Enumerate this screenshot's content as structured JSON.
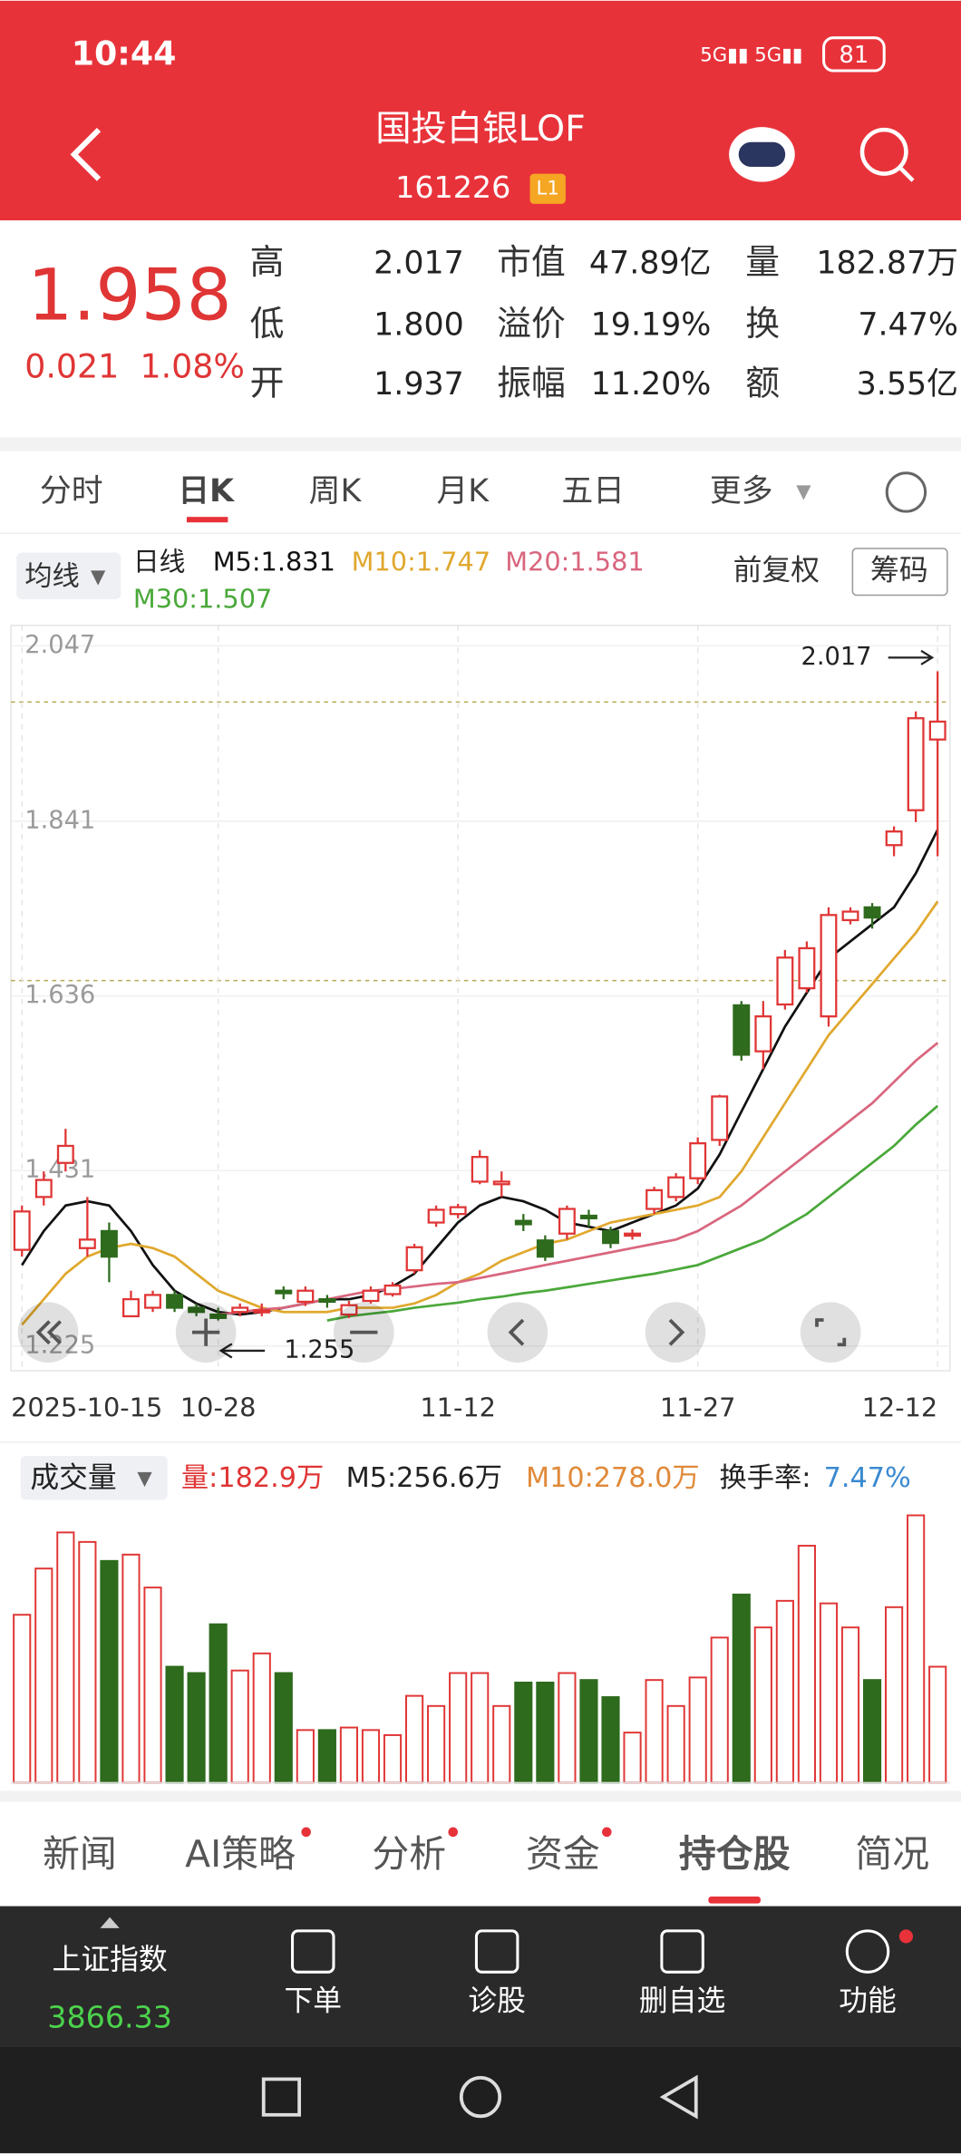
{
  "status_bar": {
    "time": "10:44",
    "battery": "81"
  },
  "header": {
    "title": "国投白银LOF",
    "code": "161226",
    "badge": "L1"
  },
  "quote": {
    "price": "1.958",
    "change": "0.021",
    "change_pct": "1.08%",
    "fields": [
      [
        {
          "label": "高",
          "value": "2.017"
        },
        {
          "label": "市值",
          "value": "47.89亿"
        },
        {
          "label": "量",
          "value": "182.87万"
        }
      ],
      [
        {
          "label": "低",
          "value": "1.800"
        },
        {
          "label": "溢价",
          "value": "19.19%"
        },
        {
          "label": "换",
          "value": "7.47%"
        }
      ],
      [
        {
          "label": "开",
          "value": "1.937"
        },
        {
          "label": "振幅",
          "value": "11.20%"
        },
        {
          "label": "额",
          "value": "3.55亿"
        }
      ]
    ]
  },
  "tabs": [
    "分时",
    "日K",
    "周K",
    "月K",
    "五日",
    "更多"
  ],
  "legend": {
    "ma_button": "均线",
    "period": "日线",
    "adjust": "前复权",
    "chips": "筹码"
  },
  "chart_data": {
    "type": "candlestick",
    "categories": [
      "2025-10-15",
      null,
      null,
      null,
      null,
      null,
      null,
      null,
      null,
      "10-28",
      null,
      null,
      null,
      null,
      null,
      null,
      null,
      null,
      null,
      null,
      "11-12",
      null,
      null,
      null,
      null,
      null,
      null,
      null,
      null,
      null,
      null,
      "11-27",
      null,
      null,
      null,
      null,
      null,
      null,
      null,
      null,
      null,
      null,
      "12-12"
    ],
    "open": [
      1.338,
      1.4,
      1.44,
      1.34,
      1.36,
      1.26,
      1.27,
      1.285,
      1.27,
      1.262,
      1.265,
      1.265,
      1.29,
      1.277,
      1.28,
      1.262,
      1.278,
      1.286,
      1.314,
      1.37,
      1.38,
      1.418,
      1.415,
      1.372,
      1.349,
      1.357,
      1.378,
      1.36,
      1.355,
      1.386,
      1.4,
      1.422,
      1.467,
      1.625,
      1.571,
      1.626,
      1.645,
      1.612,
      1.725,
      1.74,
      1.813,
      1.854,
      1.937
    ],
    "high": [
      1.39,
      1.43,
      1.48,
      1.4,
      1.37,
      1.29,
      1.29,
      1.29,
      1.275,
      1.27,
      1.275,
      1.275,
      1.295,
      1.295,
      1.285,
      1.278,
      1.295,
      1.3,
      1.345,
      1.39,
      1.392,
      1.455,
      1.43,
      1.38,
      1.355,
      1.39,
      1.385,
      1.365,
      1.362,
      1.412,
      1.428,
      1.47,
      1.52,
      1.63,
      1.63,
      1.69,
      1.7,
      1.74,
      1.74,
      1.745,
      1.835,
      1.97,
      2.017
    ],
    "low": [
      1.33,
      1.39,
      1.43,
      1.33,
      1.3,
      1.26,
      1.265,
      1.265,
      1.26,
      1.255,
      1.26,
      1.26,
      1.28,
      1.272,
      1.27,
      1.258,
      1.275,
      1.283,
      1.31,
      1.365,
      1.375,
      1.415,
      1.4,
      1.36,
      1.325,
      1.35,
      1.365,
      1.34,
      1.35,
      1.38,
      1.395,
      1.415,
      1.46,
      1.56,
      1.55,
      1.62,
      1.64,
      1.6,
      1.72,
      1.715,
      1.8,
      1.84,
      1.8
    ],
    "close": [
      1.383,
      1.42,
      1.46,
      1.35,
      1.33,
      1.28,
      1.285,
      1.27,
      1.265,
      1.258,
      1.27,
      1.267,
      1.287,
      1.29,
      1.277,
      1.273,
      1.29,
      1.296,
      1.341,
      1.385,
      1.388,
      1.447,
      1.418,
      1.368,
      1.33,
      1.386,
      1.375,
      1.346,
      1.357,
      1.408,
      1.423,
      1.463,
      1.518,
      1.567,
      1.612,
      1.681,
      1.692,
      1.731,
      1.735,
      1.728,
      1.829,
      1.962,
      1.958
    ],
    "up_color": "#e03535",
    "down_color": "#2e6b1d",
    "series": [
      {
        "name": "M5:1.831",
        "color": "#111111",
        "values": [
          1.32,
          1.36,
          1.39,
          1.395,
          1.39,
          1.36,
          1.32,
          1.29,
          1.275,
          1.265,
          1.262,
          1.265,
          1.27,
          1.275,
          1.28,
          1.28,
          1.285,
          1.295,
          1.31,
          1.34,
          1.37,
          1.39,
          1.4,
          1.395,
          1.385,
          1.37,
          1.365,
          1.36,
          1.37,
          1.38,
          1.39,
          1.41,
          1.45,
          1.5,
          1.55,
          1.6,
          1.64,
          1.68,
          1.7,
          1.72,
          1.74,
          1.78,
          1.831
        ]
      },
      {
        "name": "M10:1.747",
        "color": "#e0a82e",
        "values": [
          1.25,
          1.28,
          1.31,
          1.33,
          1.34,
          1.345,
          1.34,
          1.33,
          1.31,
          1.29,
          1.28,
          1.27,
          1.265,
          1.265,
          1.265,
          1.27,
          1.27,
          1.27,
          1.275,
          1.285,
          1.3,
          1.31,
          1.325,
          1.335,
          1.345,
          1.35,
          1.36,
          1.37,
          1.375,
          1.38,
          1.385,
          1.39,
          1.4,
          1.43,
          1.47,
          1.51,
          1.55,
          1.59,
          1.62,
          1.65,
          1.68,
          1.71,
          1.747
        ]
      },
      {
        "name": "M20:1.581",
        "color": "#d9667e",
        "values": [
          null,
          null,
          null,
          null,
          null,
          null,
          null,
          null,
          null,
          1.262,
          1.265,
          1.268,
          1.27,
          1.275,
          1.28,
          1.285,
          1.29,
          1.292,
          1.295,
          1.298,
          1.3,
          1.305,
          1.31,
          1.315,
          1.32,
          1.325,
          1.33,
          1.335,
          1.34,
          1.345,
          1.35,
          1.36,
          1.375,
          1.39,
          1.41,
          1.43,
          1.45,
          1.47,
          1.49,
          1.51,
          1.535,
          1.56,
          1.581
        ]
      },
      {
        "name": "M30:1.507",
        "color": "#4aa83a",
        "values": [
          null,
          null,
          null,
          null,
          null,
          null,
          null,
          null,
          null,
          null,
          null,
          null,
          null,
          null,
          1.255,
          1.26,
          1.263,
          1.266,
          1.27,
          1.273,
          1.276,
          1.28,
          1.283,
          1.287,
          1.29,
          1.294,
          1.298,
          1.302,
          1.306,
          1.31,
          1.315,
          1.32,
          1.33,
          1.34,
          1.35,
          1.365,
          1.38,
          1.4,
          1.42,
          1.44,
          1.46,
          1.485,
          1.507
        ]
      }
    ],
    "ylim": [
      1.196,
      2.071
    ],
    "yticks": [
      2.047,
      1.841,
      1.636,
      1.431,
      1.225
    ],
    "ref_lines": [
      1.981,
      1.654
    ],
    "max_label": 2.017,
    "min_label": 1.255,
    "volume": {
      "title": "成交量",
      "legend": [
        "量:182.9万",
        "M5:256.6万",
        "M10:278.0万"
      ],
      "turnover_label": "换手率:",
      "turnover": "7.47%",
      "ylim": [
        0,
        440
      ],
      "values": [
        265,
        338,
        395,
        380,
        350,
        360,
        308,
        183,
        173,
        250,
        177,
        204,
        173,
        83,
        83,
        87,
        83,
        75,
        137,
        121,
        173,
        173,
        121,
        158,
        158,
        173,
        162,
        135,
        79,
        162,
        121,
        166,
        229,
        297,
        245,
        287,
        374,
        283,
        245,
        162,
        277,
        422,
        183
      ]
    }
  },
  "bottom_tabs": [
    "新闻",
    "AI策略",
    "分析",
    "资金",
    "持仓股",
    "简况"
  ],
  "index_bar": {
    "name": "上证指数",
    "value": "3866.33"
  },
  "actions": [
    "下单",
    "诊股",
    "删自选",
    "功能"
  ]
}
